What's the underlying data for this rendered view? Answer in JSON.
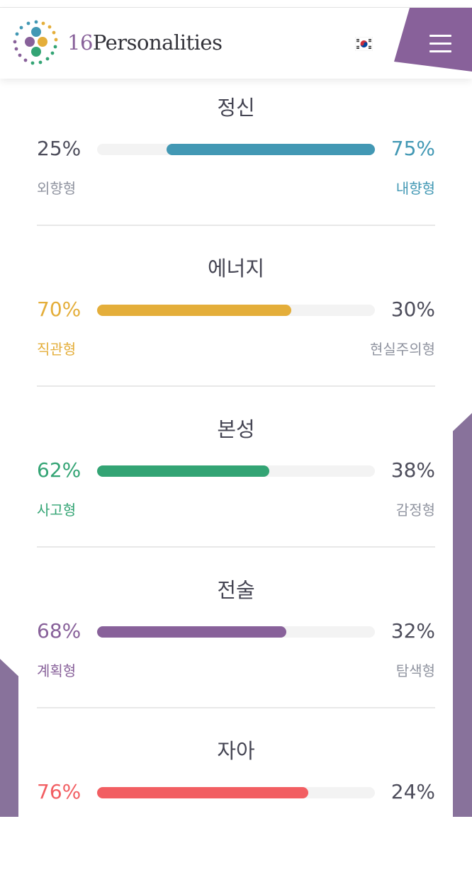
{
  "header": {
    "brand_number": "16",
    "brand_name": "Personalities",
    "logo_icon": "dotted-circle-logo-icon",
    "language_flag": "south-korea-flag-icon",
    "menu_icon": "hamburger-menu-icon"
  },
  "colors": {
    "purple": "#88619a",
    "blue": "#4298b4",
    "yellow": "#e4ae3a",
    "green": "#33a474",
    "red": "#f25e62",
    "side_shape": "#88729b"
  },
  "traits": [
    {
      "title": "정신",
      "left_percent": "25%",
      "right_percent": "75%",
      "left_label": "외향형",
      "right_label": "내향형",
      "fill_fraction": 0.75,
      "fill_side": "right",
      "dominant": "right",
      "color": "#4298b4"
    },
    {
      "title": "에너지",
      "left_percent": "70%",
      "right_percent": "30%",
      "left_label": "직관형",
      "right_label": "현실주의형",
      "fill_fraction": 0.7,
      "fill_side": "left",
      "dominant": "left",
      "color": "#e4ae3a"
    },
    {
      "title": "본성",
      "left_percent": "62%",
      "right_percent": "38%",
      "left_label": "사고형",
      "right_label": "감정형",
      "fill_fraction": 0.62,
      "fill_side": "left",
      "dominant": "left",
      "color": "#33a474"
    },
    {
      "title": "전술",
      "left_percent": "68%",
      "right_percent": "32%",
      "left_label": "계획형",
      "right_label": "탐색형",
      "fill_fraction": 0.68,
      "fill_side": "left",
      "dominant": "left",
      "color": "#88619a"
    },
    {
      "title": "자아",
      "left_percent": "76%",
      "right_percent": "24%",
      "left_label": "",
      "right_label": "",
      "fill_fraction": 0.76,
      "fill_side": "left",
      "dominant": "left",
      "color": "#f25e62"
    }
  ]
}
